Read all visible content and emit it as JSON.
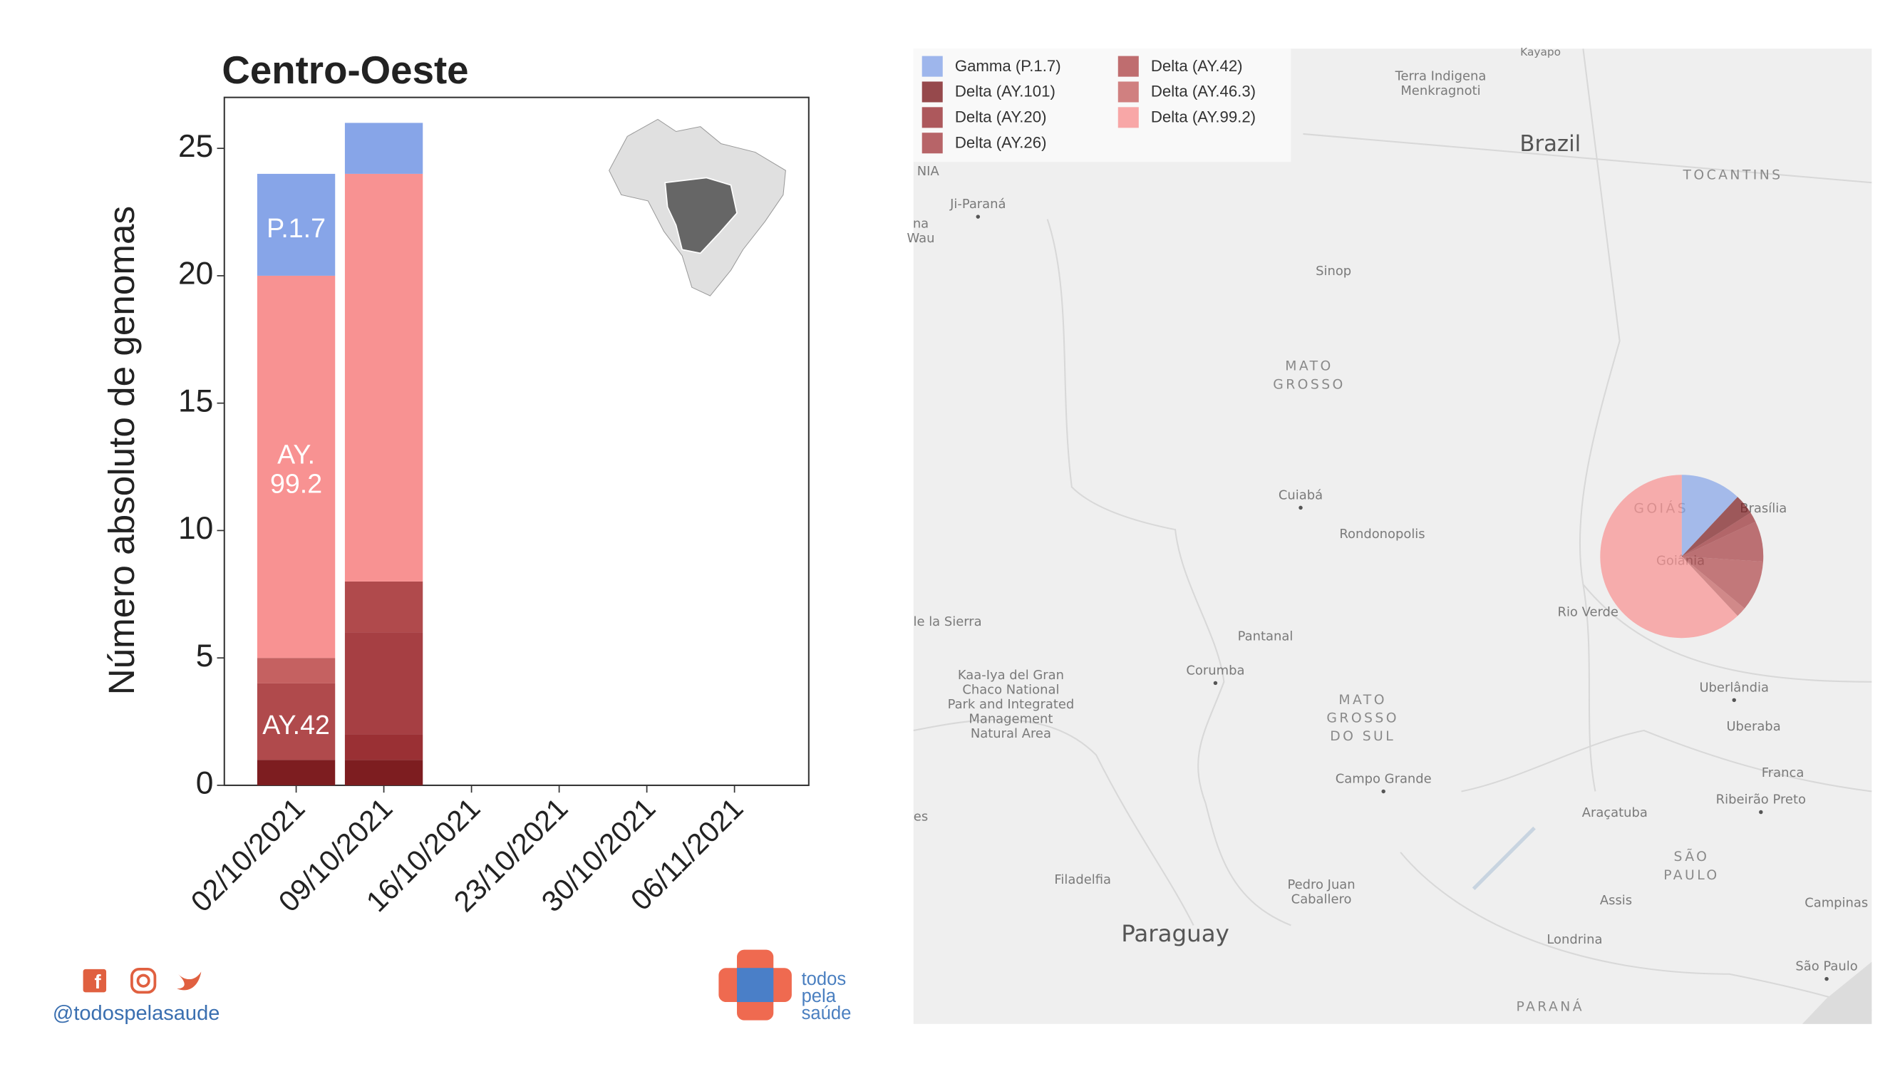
{
  "chart_data": [
    {
      "type": "bar",
      "stacked": true,
      "title": "Centro-Oeste",
      "y_label": "Número absoluto de genomas",
      "categories": [
        "02/10/2021",
        "09/10/2021",
        "16/10/2021",
        "23/10/2021",
        "30/10/2021",
        "06/11/2021"
      ],
      "series": [
        {
          "color": "#7d1d20",
          "values": [
            1,
            1,
            0,
            0,
            0,
            0
          ]
        },
        {
          "color": "#9a3034",
          "values": [
            0,
            1,
            0,
            0,
            0,
            0
          ]
        },
        {
          "color": "#a63f43",
          "values": [
            0,
            4,
            0,
            0,
            0,
            0
          ]
        },
        {
          "color": "#b04a4c",
          "values": [
            3,
            2,
            0,
            0,
            0,
            0
          ]
        },
        {
          "color": "#c56161",
          "values": [
            1,
            0,
            0,
            0,
            0,
            0
          ]
        },
        {
          "color": "#f89292",
          "values": [
            15,
            16,
            0,
            0,
            0,
            0
          ]
        },
        {
          "color": "#87a5e8",
          "values": [
            4,
            2,
            0,
            0,
            0,
            0
          ]
        }
      ],
      "annotations": [
        [
          "P.1.7"
        ],
        [
          "AY.",
          "99.2"
        ],
        [
          "AY.42"
        ]
      ],
      "ylim": [
        0,
        27
      ],
      "yticks": [
        0,
        5,
        10,
        15,
        20,
        25
      ]
    },
    {
      "type": "pie",
      "labels": [
        "Gamma (P.1.7)",
        "Delta (AY.101)",
        "Delta (AY.20)",
        "Delta (AY.26)",
        "Delta (AY.42)",
        "Delta (AY.46.3)",
        "Delta (AY.99.2)"
      ],
      "colors": [
        "#87a5e8",
        "#7d1d20",
        "#9a3034",
        "#a63f43",
        "#b04a4c",
        "#c56161",
        "#f89292"
      ],
      "values": [
        6,
        2,
        1,
        4,
        5,
        1,
        31
      ]
    }
  ],
  "map": {
    "labels": [
      "Kayapo",
      [
        "Terra Indigena",
        "Menkragnoti"
      ],
      "Brazil",
      "TOCANTINS",
      "NIA",
      "Ji-Paraná",
      [
        "na",
        "Wau"
      ],
      "Sinop",
      [
        "MATO",
        "GROSSO"
      ],
      "Cuiabá",
      "Rondonopolis",
      "GOIÁS",
      "Brasília",
      "Goiânia",
      "Rio Verde",
      "le la Sierra",
      "Pantanal",
      "Corumba",
      [
        "Kaa-Iya del Gran",
        "Chaco National",
        "Park and Integrated",
        "Management",
        "Natural Area"
      ],
      [
        "MATO",
        "GROSSO",
        "DO SUL"
      ],
      "Campo Grande",
      "Uberlândia",
      "Uberaba",
      "Franca",
      "Ribeirão Preto",
      "Araçatuba",
      "es",
      [
        "SÃO",
        "PAULO"
      ],
      "Filadelfia",
      [
        "Pedro Juan",
        "Caballero"
      ],
      "Assis",
      "Campinas",
      "Paraguay",
      "Londrina",
      "São Paulo",
      "PARANÁ"
    ]
  },
  "footer": {
    "handle": "@todospelasaude",
    "logo": [
      "todos",
      "pela",
      "saúde"
    ]
  }
}
